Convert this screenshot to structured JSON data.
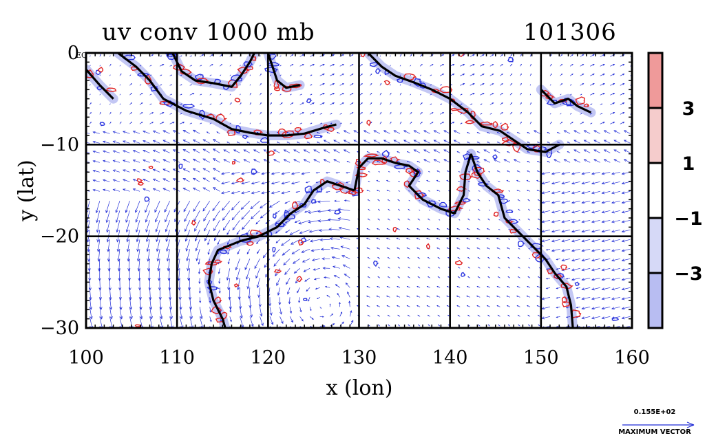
{
  "chart_data": {
    "type": "vector-field-contour-map",
    "title": "uv conv 1000 mb",
    "timestamp": "101306",
    "xlabel": "x (lon)",
    "ylabel": "y (lat)",
    "xlim": [
      100,
      160
    ],
    "ylim": [
      -30,
      0
    ],
    "x_ticks": [
      {
        "value": 100,
        "label": "100"
      },
      {
        "value": 110,
        "label": "110"
      },
      {
        "value": 120,
        "label": "120"
      },
      {
        "value": 130,
        "label": "130"
      },
      {
        "value": 140,
        "label": "140"
      },
      {
        "value": 150,
        "label": "150"
      },
      {
        "value": 160,
        "label": "160"
      }
    ],
    "y_ticks": [
      {
        "value": 0,
        "label": "0"
      },
      {
        "value": -10,
        "label": "−10"
      },
      {
        "value": -20,
        "label": "−20"
      },
      {
        "value": -30,
        "label": "−30"
      }
    ],
    "corner_label": "EQ",
    "grid": true,
    "colorbar": {
      "levels": [
        -5,
        -3,
        -1,
        1,
        3,
        5
      ],
      "labels": [
        {
          "value": 3,
          "text": "3"
        },
        {
          "value": 1,
          "text": "1"
        },
        {
          "value": -1,
          "text": "−1"
        },
        {
          "value": -3,
          "text": "−3"
        }
      ],
      "colors": [
        "#b8bdf2",
        "#d6d9f7",
        "#ffffff",
        "#f5cccc",
        "#ef9a9a"
      ]
    },
    "colors": {
      "vector": "#1f2bd6",
      "positive_contour": "#e02424",
      "negative_contour": "#2b35e0",
      "coast": "#000000"
    },
    "reference_vector": {
      "value_label": "0.155E+02",
      "caption": "MAXIMUM VECTOR"
    },
    "coastlines": [
      {
        "name": "sumatra-java",
        "points": [
          [
            103.5,
            0
          ],
          [
            105.5,
            -1.5
          ],
          [
            107,
            -3
          ],
          [
            108.5,
            -5
          ],
          [
            111,
            -6.3
          ],
          [
            114,
            -7.2
          ],
          [
            116,
            -8.3
          ],
          [
            118,
            -8.7
          ],
          [
            120,
            -9
          ],
          [
            122,
            -9
          ],
          [
            124,
            -8.8
          ],
          [
            126,
            -8.2
          ],
          [
            127.5,
            -7.8
          ]
        ]
      },
      {
        "name": "sumatra-west",
        "points": [
          [
            100,
            -1.8
          ],
          [
            101.5,
            -3.5
          ],
          [
            103,
            -5
          ]
        ]
      },
      {
        "name": "borneo",
        "points": [
          [
            109.5,
            0
          ],
          [
            110.5,
            -2
          ],
          [
            112,
            -3
          ],
          [
            114,
            -3.3
          ],
          [
            116,
            -3.7
          ],
          [
            117,
            -2.5
          ],
          [
            118,
            -1
          ],
          [
            118.5,
            0
          ]
        ]
      },
      {
        "name": "sulawesi",
        "points": [
          [
            120,
            0
          ],
          [
            120.5,
            -1.5
          ],
          [
            121,
            -3
          ],
          [
            122,
            -3.8
          ],
          [
            123.5,
            -3.5
          ]
        ]
      },
      {
        "name": "new-guinea",
        "points": [
          [
            131,
            0
          ],
          [
            132.5,
            -1.5
          ],
          [
            134,
            -2.5
          ],
          [
            136,
            -3.2
          ],
          [
            138,
            -4
          ],
          [
            140,
            -5
          ],
          [
            142,
            -6.5
          ],
          [
            143.5,
            -8
          ],
          [
            145.5,
            -8.5
          ],
          [
            147,
            -9.5
          ],
          [
            148.5,
            -10.5
          ],
          [
            150.5,
            -10.8
          ],
          [
            152,
            -10
          ]
        ]
      },
      {
        "name": "bismarck",
        "points": [
          [
            150,
            -4
          ],
          [
            151.5,
            -5.5
          ],
          [
            153,
            -5
          ],
          [
            154,
            -5.8
          ],
          [
            155.5,
            -6.5
          ]
        ]
      },
      {
        "name": "australia-west-coast",
        "points": [
          [
            129.5,
            -15
          ],
          [
            128,
            -14.5
          ],
          [
            126.5,
            -14
          ],
          [
            125,
            -15
          ],
          [
            124,
            -16.5
          ],
          [
            122.5,
            -17.5
          ],
          [
            121,
            -19
          ],
          [
            119,
            -20
          ],
          [
            117,
            -20.5
          ],
          [
            114.5,
            -21.5
          ],
          [
            113.8,
            -23
          ],
          [
            113.5,
            -25
          ],
          [
            114,
            -27
          ],
          [
            115,
            -29
          ],
          [
            115.3,
            -30
          ]
        ]
      },
      {
        "name": "australia-north-coast",
        "points": [
          [
            129.5,
            -15
          ],
          [
            130,
            -12.5
          ],
          [
            131,
            -11.5
          ],
          [
            132.5,
            -11.5
          ],
          [
            134,
            -12
          ],
          [
            135.5,
            -12.3
          ],
          [
            136.5,
            -13
          ],
          [
            135.5,
            -14.5
          ],
          [
            137,
            -16
          ],
          [
            139,
            -17
          ],
          [
            140.5,
            -17.5
          ],
          [
            141.5,
            -15.5
          ],
          [
            141.7,
            -13
          ],
          [
            142.3,
            -11
          ]
        ]
      },
      {
        "name": "australia-east-coast",
        "points": [
          [
            142.3,
            -11
          ],
          [
            143,
            -13
          ],
          [
            144,
            -14.5
          ],
          [
            145.3,
            -15.5
          ],
          [
            146,
            -18
          ],
          [
            147.5,
            -19.5
          ],
          [
            149,
            -21
          ],
          [
            150.5,
            -22.5
          ],
          [
            151.5,
            -24
          ],
          [
            152.8,
            -25.5
          ],
          [
            153.3,
            -27.5
          ],
          [
            153.5,
            -30
          ]
        ]
      }
    ]
  }
}
